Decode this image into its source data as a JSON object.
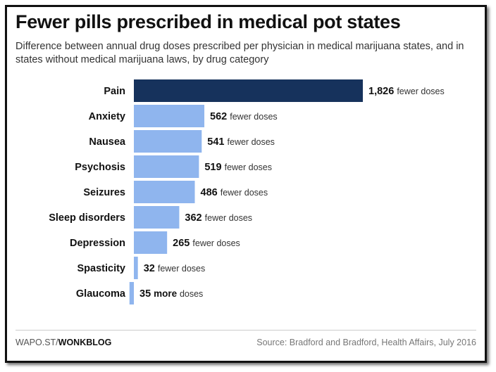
{
  "chart_data": {
    "type": "bar",
    "orientation": "horizontal",
    "title": "Fewer pills prescribed in medical pot states",
    "subtitle": "Difference between annual drug doses prescribed per physician in medical marijuana states, and in states without medical marijuana laws, by drug category",
    "categories": [
      "Pain",
      "Anxiety",
      "Nausea",
      "Psychosis",
      "Seizures",
      "Sleep disorders",
      "Depression",
      "Spasticity",
      "Glaucoma"
    ],
    "values": [
      1826,
      562,
      541,
      519,
      486,
      362,
      265,
      32,
      -35
    ],
    "value_labels": [
      "1,826",
      "562",
      "541",
      "519",
      "486",
      "362",
      "265",
      "32",
      "35"
    ],
    "label_suffixes": [
      "fewer doses",
      "fewer doses",
      "fewer doses",
      "fewer doses",
      "fewer doses",
      "fewer doses",
      "fewer doses",
      "fewer doses",
      "more doses"
    ],
    "colors": {
      "highlight": "#16325c",
      "default": "#8fb5ee"
    },
    "highlight_index": 0,
    "grid": false
  },
  "footer": {
    "credit_prefix": "WAPO.ST/",
    "credit_bold": "WONKBLOG",
    "source": "Source: Bradford and Bradford, Health Affairs, July 2016"
  }
}
